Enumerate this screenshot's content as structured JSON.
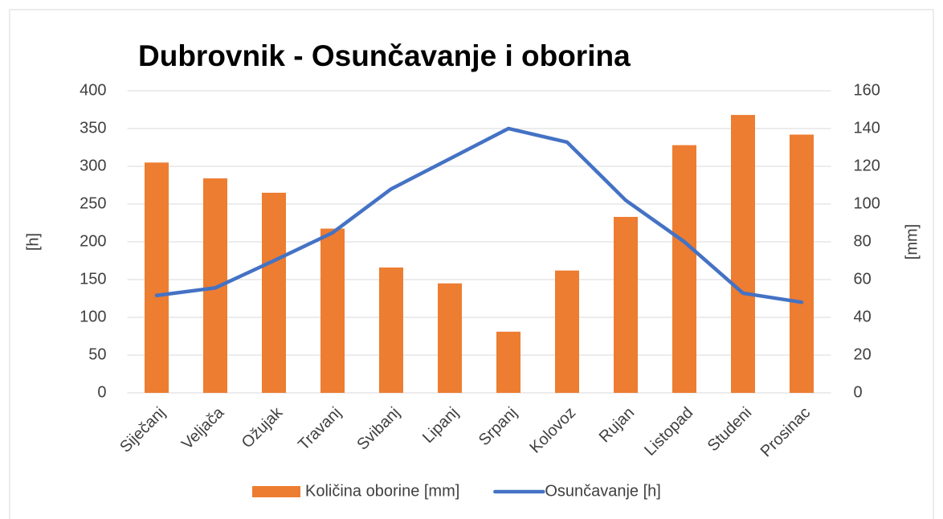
{
  "chart_data": {
    "type": "bar_line",
    "title": "Dubrovnik - Osunčavanje i oborina",
    "categories": [
      "Siječanj",
      "Veljača",
      "Ožujak",
      "Travanj",
      "Svibanj",
      "Lipanj",
      "Srpanj",
      "Kolovoz",
      "Rujan",
      "Listopad",
      "Studeni",
      "Prosinac"
    ],
    "y_label": "[h]",
    "y2_label": "[mm]",
    "ylim": [
      0,
      400
    ],
    "yticks": [
      0,
      50,
      100,
      150,
      200,
      250,
      300,
      350,
      400
    ],
    "y2lim": [
      0,
      160
    ],
    "y2ticks": [
      0,
      20,
      40,
      60,
      80,
      100,
      120,
      140,
      160
    ],
    "grid": true,
    "series": [
      {
        "name": "Količina oborine [mm]",
        "kind": "bar",
        "axis": "y2",
        "color": "#ed7d31",
        "values": [
          122,
          113.6,
          106,
          87,
          66.4,
          58,
          32.4,
          64.8,
          93.2,
          131.2,
          147.2,
          136.8
        ]
      },
      {
        "name": "Osunčavanje [h]",
        "kind": "line",
        "axis": "y",
        "color": "#4472c4",
        "values": [
          129,
          139,
          175,
          212,
          270,
          310,
          350,
          332,
          255,
          200,
          132,
          120
        ]
      }
    ]
  }
}
